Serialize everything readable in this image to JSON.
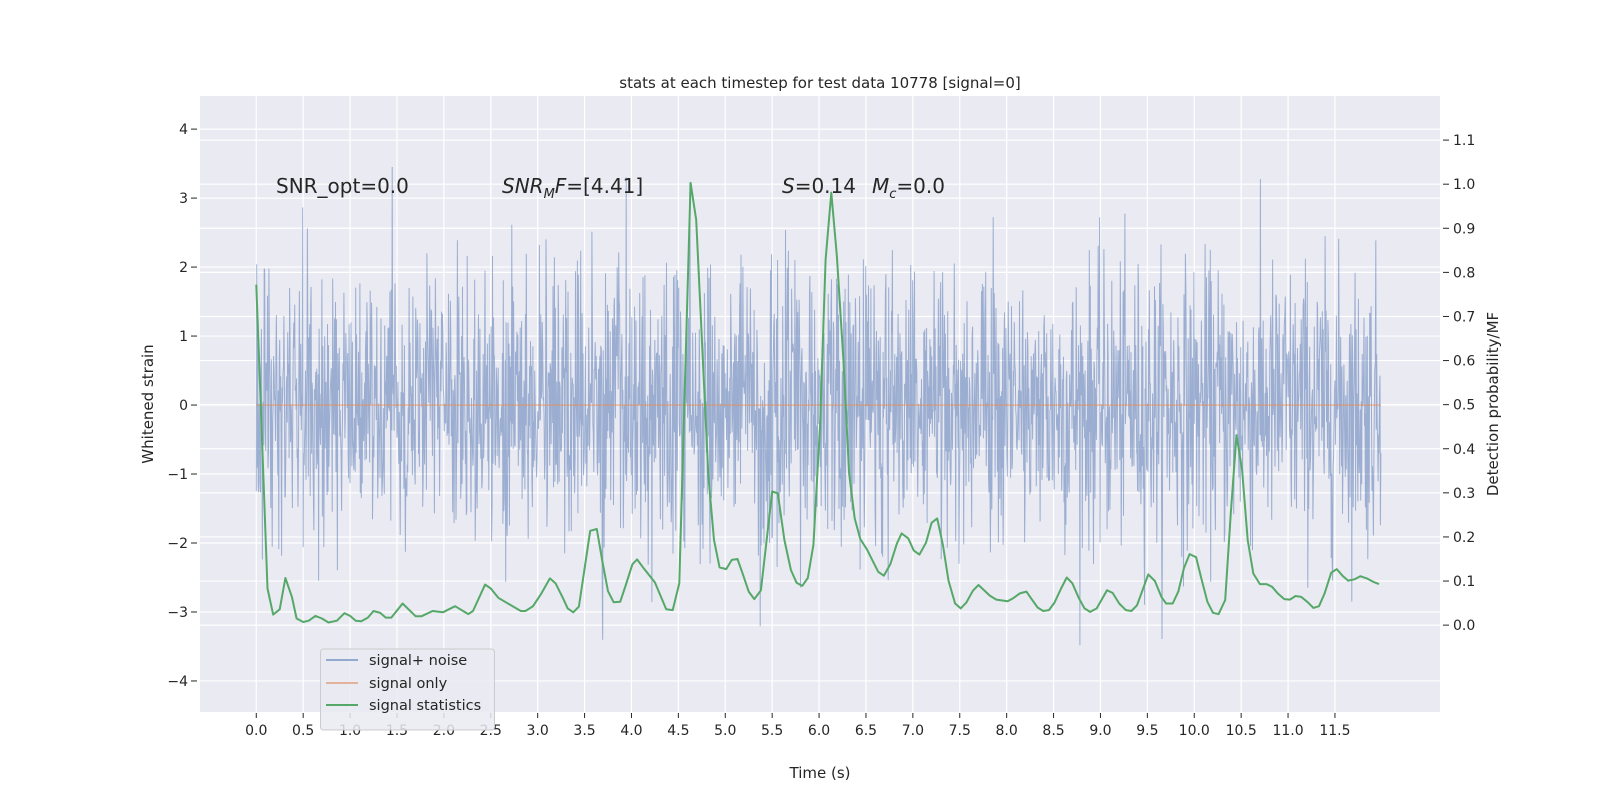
{
  "chart_data": {
    "type": "line",
    "title": "stats at each timestep for test data 10778 [signal=0]",
    "xlabel": "Time (s)",
    "ylabel": "Whitened strain",
    "ylabel_right": "Detection probability/MF",
    "xlim": [
      -0.6,
      12.62
    ],
    "ylim": [
      -4.45,
      4.48
    ],
    "ylim_right": [
      -0.197,
      1.2
    ],
    "grid": true,
    "legend_placement": "lower-left",
    "colors": {
      "background": "#eaeaf2",
      "grid": "#ffffff",
      "noise": "#4c72b0",
      "signal": "#dd8452",
      "stats": "#55a868",
      "text": "#262626"
    },
    "x_ticks": [
      "0.0",
      "0.5",
      "1.0",
      "1.5",
      "2.0",
      "2.5",
      "3.0",
      "3.5",
      "4.0",
      "4.5",
      "5.0",
      "5.5",
      "6.0",
      "6.5",
      "7.0",
      "7.5",
      "8.0",
      "8.5",
      "9.0",
      "9.5",
      "10.0",
      "10.5",
      "11.0",
      "11.5"
    ],
    "y_ticks": [
      "−4",
      "−3",
      "−2",
      "−1",
      "0",
      "1",
      "2",
      "3",
      "4"
    ],
    "y_ticks_right": [
      "0.0",
      "0.1",
      "0.2",
      "0.3",
      "0.4",
      "0.5",
      "0.6",
      "0.7",
      "0.8",
      "0.9",
      "1.0",
      "1.1"
    ],
    "annotations": {
      "snr_opt": "SNR_opt=0.0",
      "snr_mf": {
        "base": "SNR",
        "sub": "M",
        "rest": "F",
        "value": "=[4.41]"
      },
      "s": {
        "base": "S",
        "value": "=0.14"
      },
      "mc": {
        "base": "M",
        "sub": "c",
        "value": "=0.0"
      }
    },
    "series": [
      {
        "name": "signal+ noise",
        "axis": "left",
        "x_range": [
          0,
          11.99
        ],
        "observed_min": -4.05,
        "observed_max": 4.08,
        "typical_band": [
          -1.3,
          1.3
        ]
      },
      {
        "name": "signal only",
        "axis": "left",
        "x_range": [
          0,
          11.99
        ],
        "value": 0
      },
      {
        "name": "signal statistics",
        "axis": "right",
        "x": [
          0.0,
          0.12,
          0.18,
          0.25,
          0.31,
          0.38,
          0.43,
          0.5,
          0.56,
          0.63,
          0.7,
          0.77,
          0.86,
          0.94,
          1.0,
          1.06,
          1.12,
          1.19,
          1.25,
          1.32,
          1.38,
          1.44,
          1.56,
          1.7,
          1.76,
          1.88,
          1.99,
          2.12,
          2.26,
          2.31,
          2.44,
          2.5,
          2.58,
          2.7,
          2.82,
          2.87,
          2.95,
          3.04,
          3.13,
          3.19,
          3.27,
          3.32,
          3.38,
          3.44,
          3.56,
          3.63,
          3.69,
          3.75,
          3.81,
          3.88,
          3.94,
          4.01,
          4.06,
          4.13,
          4.25,
          4.37,
          4.44,
          4.51,
          4.63,
          4.69,
          4.82,
          4.88,
          4.94,
          5.01,
          5.07,
          5.13,
          5.19,
          5.25,
          5.31,
          5.38,
          5.5,
          5.56,
          5.63,
          5.7,
          5.76,
          5.82,
          5.88,
          5.94,
          6.01,
          6.07,
          6.13,
          6.19,
          6.26,
          6.32,
          6.38,
          6.44,
          6.51,
          6.63,
          6.69,
          6.76,
          6.83,
          6.88,
          6.95,
          7.01,
          7.07,
          7.14,
          7.2,
          7.26,
          7.32,
          7.38,
          7.45,
          7.51,
          7.57,
          7.64,
          7.7,
          7.82,
          7.89,
          8.01,
          8.07,
          8.14,
          8.21,
          8.26,
          8.33,
          8.39,
          8.45,
          8.51,
          8.58,
          8.64,
          8.7,
          8.77,
          8.83,
          8.89,
          8.96,
          9.07,
          9.13,
          9.2,
          9.27,
          9.33,
          9.39,
          9.51,
          9.58,
          9.65,
          9.7,
          9.77,
          9.83,
          9.89,
          9.95,
          10.02,
          10.08,
          10.14,
          10.2,
          10.26,
          10.33,
          10.39,
          10.45,
          10.51,
          10.57,
          10.63,
          10.7,
          10.77,
          10.83,
          10.89,
          10.96,
          11.02,
          11.08,
          11.14,
          11.21,
          11.27,
          11.33,
          11.39,
          11.46,
          11.52,
          11.58,
          11.64,
          11.71,
          11.77,
          11.84,
          11.91,
          11.97
        ],
        "y": [
          0.772,
          0.083,
          0.024,
          0.036,
          0.107,
          0.064,
          0.015,
          0.007,
          0.01,
          0.021,
          0.015,
          0.006,
          0.01,
          0.027,
          0.021,
          0.01,
          0.009,
          0.017,
          0.032,
          0.028,
          0.017,
          0.017,
          0.049,
          0.02,
          0.02,
          0.032,
          0.029,
          0.043,
          0.025,
          0.032,
          0.092,
          0.083,
          0.062,
          0.047,
          0.032,
          0.032,
          0.043,
          0.072,
          0.106,
          0.095,
          0.061,
          0.038,
          0.029,
          0.042,
          0.214,
          0.218,
          0.144,
          0.077,
          0.052,
          0.053,
          0.091,
          0.138,
          0.149,
          0.129,
          0.097,
          0.036,
          0.034,
          0.095,
          1.003,
          0.919,
          0.337,
          0.193,
          0.131,
          0.127,
          0.148,
          0.15,
          0.114,
          0.076,
          0.059,
          0.079,
          0.303,
          0.299,
          0.193,
          0.125,
          0.096,
          0.089,
          0.107,
          0.182,
          0.45,
          0.829,
          0.981,
          0.836,
          0.602,
          0.344,
          0.242,
          0.195,
          0.172,
          0.121,
          0.112,
          0.138,
          0.185,
          0.208,
          0.197,
          0.169,
          0.16,
          0.187,
          0.232,
          0.242,
          0.182,
          0.101,
          0.049,
          0.038,
          0.051,
          0.078,
          0.091,
          0.067,
          0.058,
          0.054,
          0.061,
          0.072,
          0.076,
          0.061,
          0.04,
          0.032,
          0.034,
          0.051,
          0.083,
          0.108,
          0.095,
          0.061,
          0.038,
          0.03,
          0.038,
          0.079,
          0.073,
          0.049,
          0.034,
          0.032,
          0.045,
          0.115,
          0.1,
          0.064,
          0.049,
          0.049,
          0.076,
          0.129,
          0.161,
          0.154,
          0.102,
          0.053,
          0.028,
          0.025,
          0.057,
          0.254,
          0.431,
          0.352,
          0.193,
          0.117,
          0.093,
          0.093,
          0.087,
          0.072,
          0.059,
          0.058,
          0.066,
          0.064,
          0.052,
          0.039,
          0.043,
          0.072,
          0.119,
          0.127,
          0.112,
          0.101,
          0.104,
          0.111,
          0.106,
          0.098,
          0.093
        ]
      }
    ]
  }
}
